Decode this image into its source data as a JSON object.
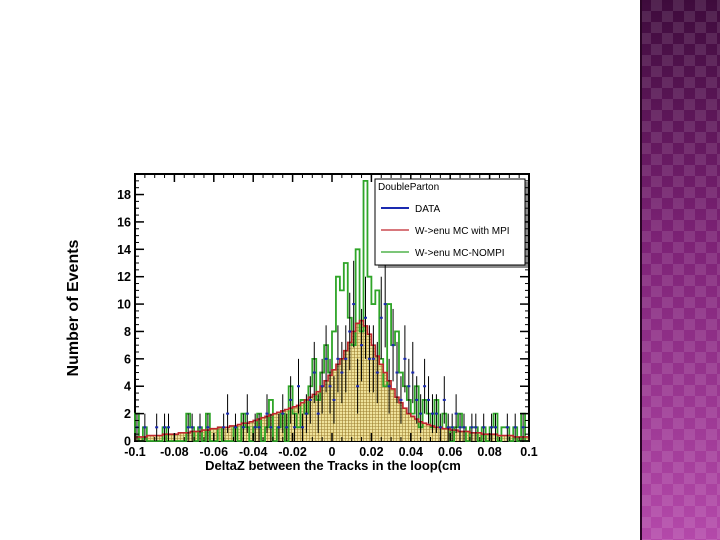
{
  "colors": {
    "data": "#1a2ab0",
    "mc_mpi": "#c0262d",
    "mc_nompi": "#2fa528",
    "mc_fill": "#efe29a",
    "mc_grid": "#9c7f2e",
    "deco": "#8e2a86"
  },
  "chart_data": {
    "type": "bar",
    "title": "",
    "xlabel": "DeltaZ between the Tracks in the loop(cm",
    "ylabel": "Number of Events",
    "xlim": [
      -0.1,
      0.1
    ],
    "ylim": [
      0,
      19.5
    ],
    "x_ticks": [
      "-0.1",
      "-0.08",
      "-0.06",
      "-0.04",
      "-0.02",
      "0",
      "0.02",
      "0.04",
      "0.06",
      "0.08",
      "0.1"
    ],
    "y_ticks": [
      "0",
      "2",
      "4",
      "6",
      "8",
      "10",
      "12",
      "14",
      "16",
      "18"
    ],
    "legend": {
      "title": "DoubleParton",
      "placement": "top-right",
      "entries": [
        "DATA",
        "W->enu MC with MPI",
        "W->enu MC-NOMPI"
      ]
    },
    "bin_edges": [
      -0.1,
      0.1
    ],
    "series": [
      {
        "name": "DATA",
        "style": "markers-with-errors",
        "values": [
          1,
          0,
          1,
          0,
          0,
          1,
          0,
          1,
          1,
          0,
          0,
          0,
          0,
          1,
          1,
          0,
          1,
          0,
          1,
          0,
          0,
          0,
          1,
          2,
          0,
          1,
          0,
          1,
          2,
          0,
          1,
          1,
          0,
          2,
          1,
          0,
          1,
          2,
          1,
          3,
          1,
          4,
          1,
          2,
          3,
          5,
          2,
          4,
          6,
          4,
          3,
          6,
          5,
          6,
          8,
          10,
          4,
          7,
          9,
          6,
          6,
          5,
          9,
          10,
          4,
          7,
          5,
          3,
          6,
          4,
          5,
          3,
          2,
          4,
          3,
          2,
          2,
          1,
          3,
          1,
          1,
          2,
          1,
          1,
          0,
          1,
          1,
          0,
          1,
          0,
          1,
          1,
          0,
          0,
          1,
          0,
          1,
          0,
          1,
          0
        ]
      },
      {
        "name": "W->enu MC with MPI",
        "style": "filled-step",
        "values": [
          0.3,
          0.3,
          0.3,
          0.4,
          0.4,
          0.4,
          0.4,
          0.5,
          0.5,
          0.5,
          0.5,
          0.6,
          0.6,
          0.6,
          0.7,
          0.7,
          0.7,
          0.8,
          0.8,
          0.9,
          0.9,
          1.0,
          1.0,
          1.0,
          1.1,
          1.1,
          1.2,
          1.3,
          1.3,
          1.4,
          1.5,
          1.6,
          1.7,
          1.8,
          1.9,
          2.0,
          2.1,
          2.2,
          2.3,
          2.4,
          2.5,
          2.6,
          2.8,
          3.0,
          3.2,
          3.4,
          3.6,
          4.0,
          4.4,
          4.8,
          5.2,
          5.6,
          6.0,
          6.6,
          7.2,
          8.0,
          8.6,
          8.8,
          8.4,
          7.8,
          7.0,
          6.2,
          5.6,
          5.0,
          4.4,
          3.8,
          3.2,
          2.8,
          2.4,
          2.0,
          1.8,
          1.6,
          1.4,
          1.3,
          1.2,
          1.1,
          1.0,
          1.0,
          0.9,
          0.9,
          0.8,
          0.8,
          0.7,
          0.7,
          0.7,
          0.6,
          0.6,
          0.6,
          0.5,
          0.5,
          0.5,
          0.5,
          0.4,
          0.4,
          0.4,
          0.4,
          0.3,
          0.3,
          0.3,
          0.3
        ]
      },
      {
        "name": "W->enu MC-NOMPI",
        "style": "step",
        "values": [
          2,
          0,
          1,
          0,
          0,
          0,
          0,
          1,
          0,
          0,
          0,
          0,
          0,
          2,
          1,
          0,
          1,
          0,
          2,
          0,
          0,
          1,
          0,
          0,
          0,
          1,
          0,
          2,
          1,
          0,
          1,
          2,
          0,
          1,
          3,
          0,
          1,
          2,
          0,
          4,
          2,
          1,
          3,
          2,
          4,
          6,
          3,
          5,
          7,
          5,
          8,
          12,
          11,
          13,
          9,
          7,
          14,
          8,
          19,
          12,
          10,
          11,
          6,
          4,
          10,
          7,
          8,
          5,
          4,
          3,
          2,
          4,
          1,
          3,
          2,
          1,
          3,
          1,
          2,
          1,
          0,
          1,
          2,
          1,
          0,
          1,
          1,
          0,
          1,
          0,
          1,
          2,
          0,
          1,
          1,
          0,
          1,
          0,
          2,
          0
        ]
      }
    ]
  }
}
